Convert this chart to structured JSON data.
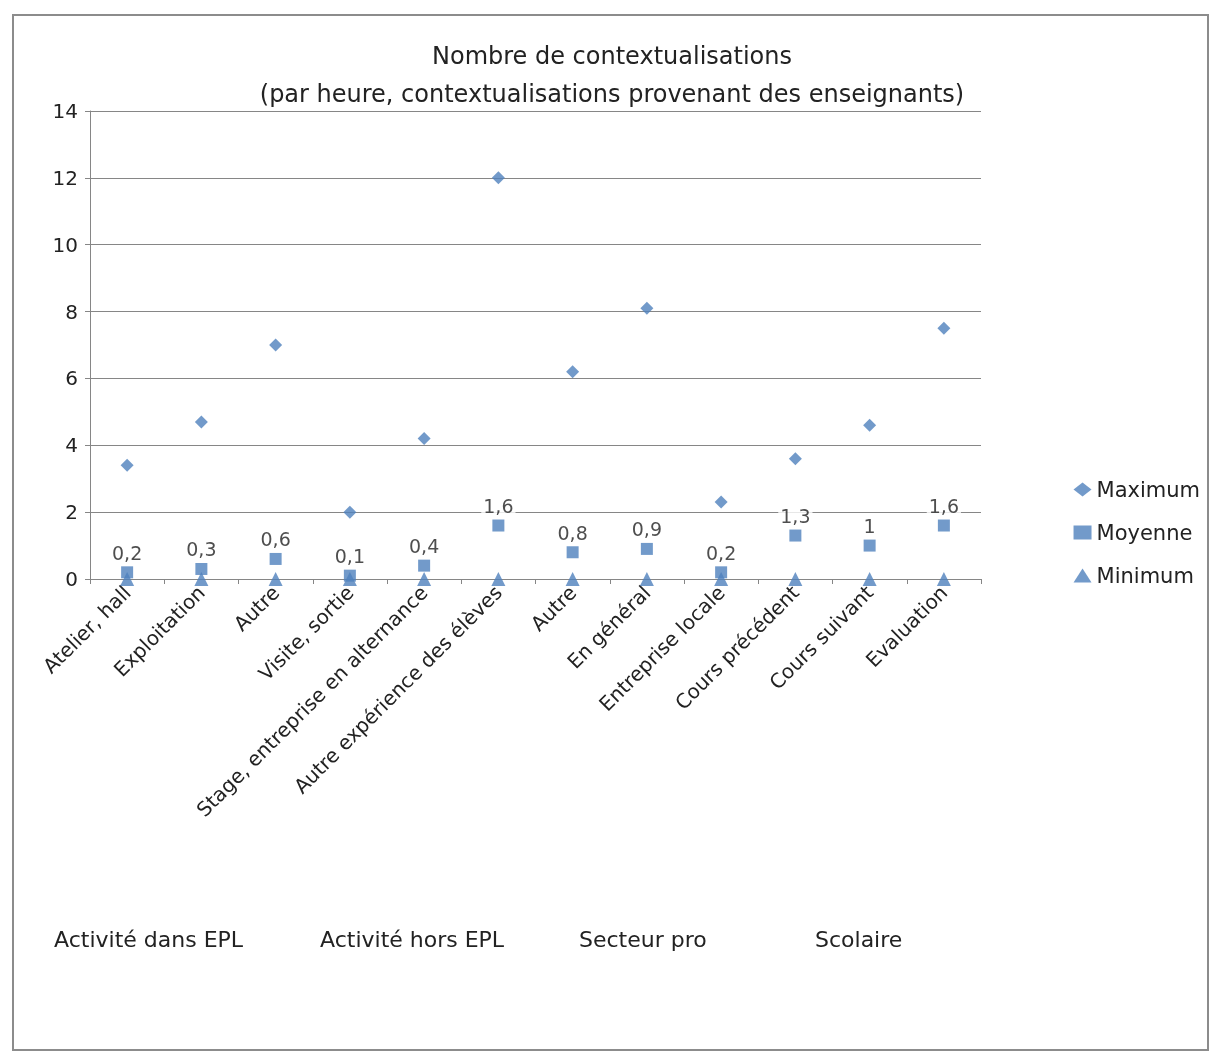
{
  "chart_data": {
    "type": "scatter",
    "title": "Nombre de contextualisations\n(par heure, contextualisations provenant des enseignants)",
    "categories": [
      "Atelier, hall",
      "Exploitation",
      "Autre",
      "Visite, sortie",
      "Stage, entreprise en alternance",
      "Autre expérience des élèves",
      "Autre",
      "En général",
      "Entreprise locale",
      "Cours précédent",
      "Cours suivant",
      "Evaluation"
    ],
    "series": [
      {
        "name": "Maximum",
        "color": "#4f81bd",
        "marker": "diamond",
        "values": [
          3.4,
          4.7,
          7.0,
          2.0,
          4.2,
          12.0,
          6.2,
          8.1,
          2.3,
          3.6,
          4.6,
          7.5
        ]
      },
      {
        "name": "Moyenne",
        "color": "#4f81bd",
        "marker": "square",
        "values": [
          0.2,
          0.3,
          0.6,
          0.1,
          0.4,
          1.6,
          0.8,
          0.9,
          0.2,
          1.3,
          1,
          1.6
        ],
        "value_labels": [
          "0,2",
          "0,3",
          "0,6",
          "0,1",
          "0,4",
          "1,6",
          "0,8",
          "0,9",
          "0,2",
          "1,3",
          "1",
          "1,6"
        ]
      },
      {
        "name": "Minimum",
        "color": "#4f81bd",
        "marker": "triangle",
        "values": [
          0,
          0,
          0,
          0,
          0,
          0,
          0,
          0,
          0,
          0,
          0,
          0
        ]
      }
    ],
    "ylim": [
      0,
      14
    ],
    "yticks": [
      0,
      2,
      4,
      6,
      8,
      10,
      12,
      14
    ],
    "grid": "y",
    "legend": "right",
    "annotations": [
      "Activité dans EPL",
      "Activité hors EPL",
      "Secteur pro",
      "Scolaire"
    ]
  }
}
